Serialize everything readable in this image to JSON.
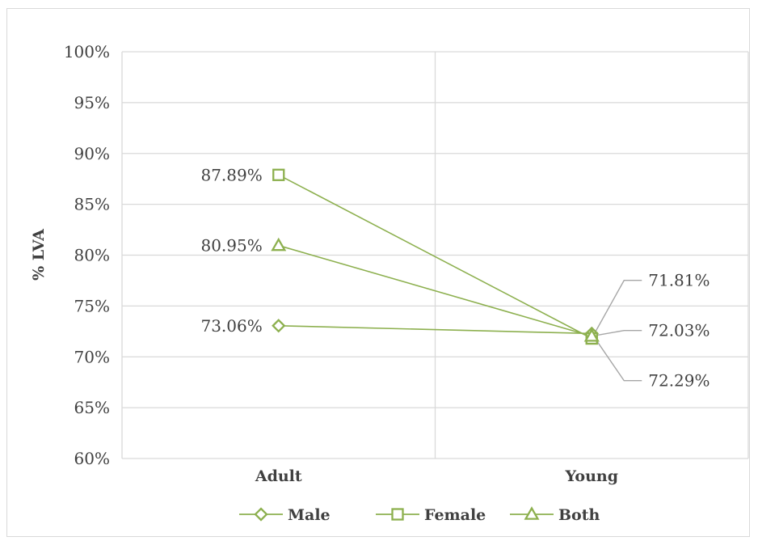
{
  "chart_data": {
    "type": "line",
    "title": "",
    "xlabel": "",
    "ylabel": "% LVA",
    "categories": [
      "Adult",
      "Young"
    ],
    "ylim": [
      60,
      100
    ],
    "yticks": [
      60,
      65,
      70,
      75,
      80,
      85,
      90,
      95,
      100
    ],
    "ytick_labels": [
      "60%",
      "65%",
      "70%",
      "75%",
      "80%",
      "85%",
      "90%",
      "95%",
      "100%"
    ],
    "grid": true,
    "legend_position": "bottom",
    "series": [
      {
        "name": "Male",
        "marker": "diamond",
        "values": [
          73.06,
          72.29
        ],
        "labels": [
          "73.06%",
          "72.29%"
        ]
      },
      {
        "name": "Female",
        "marker": "square",
        "values": [
          87.89,
          71.81
        ],
        "labels": [
          "87.89%",
          "71.81%"
        ]
      },
      {
        "name": "Both",
        "marker": "triangle",
        "values": [
          80.95,
          72.03
        ],
        "labels": [
          "80.95%",
          "72.03%"
        ]
      }
    ],
    "colors": {
      "series": "#8db04f",
      "grid": "#d9d9d9",
      "leader": "#a6a6a6",
      "text": "#404040"
    }
  }
}
